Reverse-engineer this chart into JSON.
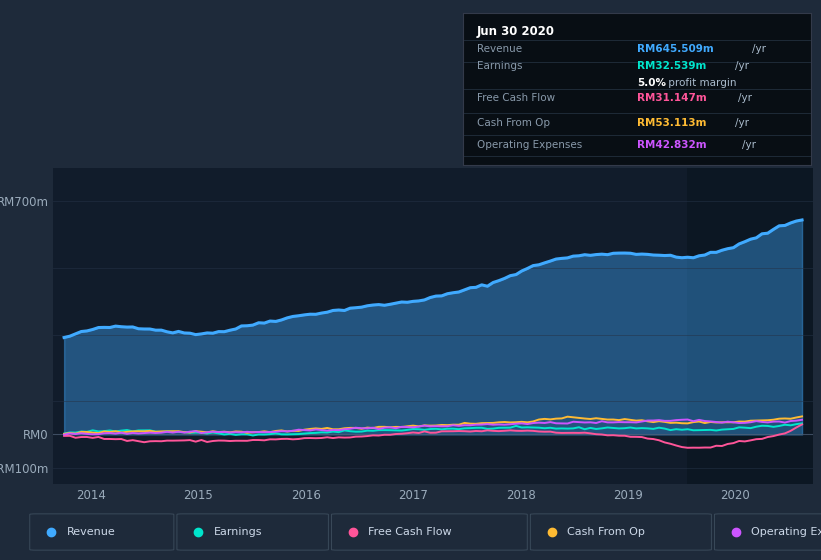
{
  "bg_color": "#1e2a3a",
  "chart_area_color": "#111c2b",
  "grid_color": "#253347",
  "zero_line_color": "#4a5a70",
  "ylim": [
    -150,
    800
  ],
  "xlim_start": 2013.65,
  "xlim_end": 2020.72,
  "yticks_labels": [
    "RM700m",
    "RM0",
    "-RM100m"
  ],
  "yticks_values": [
    700,
    0,
    -100
  ],
  "xtick_labels": [
    "2014",
    "2015",
    "2016",
    "2017",
    "2018",
    "2019",
    "2020"
  ],
  "xtick_values": [
    2014,
    2015,
    2016,
    2017,
    2018,
    2019,
    2020
  ],
  "series_colors": {
    "revenue": "#40aaff",
    "earnings": "#00e5cc",
    "free_cash_flow": "#ff5599",
    "cash_from_op": "#ffbb33",
    "operating_expenses": "#cc55ff"
  },
  "legend_entries": [
    "Revenue",
    "Earnings",
    "Free Cash Flow",
    "Cash From Op",
    "Operating Expenses"
  ],
  "legend_colors": [
    "#40aaff",
    "#00e5cc",
    "#ff5599",
    "#ffbb33",
    "#cc55ff"
  ],
  "shaded_region_start": 2019.55,
  "shaded_region_color": "#0a1520",
  "tooltip_title": "Jun 30 2020",
  "tooltip_rows": [
    {
      "label": "Revenue",
      "value": "RM645.509m",
      "color": "#40aaff"
    },
    {
      "label": "Earnings",
      "value": "RM32.539m",
      "color": "#00e5cc"
    },
    {
      "label": "",
      "value": "",
      "color": ""
    },
    {
      "label": "Free Cash Flow",
      "value": "RM31.147m",
      "color": "#ff5599"
    },
    {
      "label": "Cash From Op",
      "value": "RM53.113m",
      "color": "#ffbb33"
    },
    {
      "label": "Operating Expenses",
      "value": "RM42.832m",
      "color": "#cc55ff"
    }
  ],
  "profit_margin_text": "5.0%",
  "profit_margin_label": " profit margin"
}
